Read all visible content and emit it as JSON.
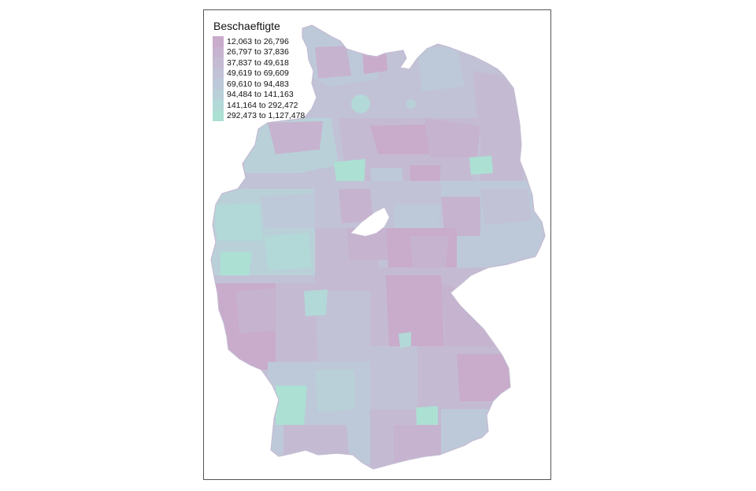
{
  "legend": {
    "title": "Beschaeftigte",
    "classes": [
      {
        "label": "12,063 to 26,796",
        "color": "#c9abcb"
      },
      {
        "label": "26,797 to 37,836",
        "color": "#c6b3cf"
      },
      {
        "label": "37,837 to 49,618",
        "color": "#c4bbd3"
      },
      {
        "label": "49,619 to 69,609",
        "color": "#c1c2d6"
      },
      {
        "label": "69,610 to 94,483",
        "color": "#bdc9d8"
      },
      {
        "label": "94,484 to 141,163",
        "color": "#b9d0d9"
      },
      {
        "label": "141,164 to 292,472",
        "color": "#b3d8d8"
      },
      {
        "label": "292,473 to 1,127,478",
        "color": "#ace0d3"
      }
    ]
  }
}
